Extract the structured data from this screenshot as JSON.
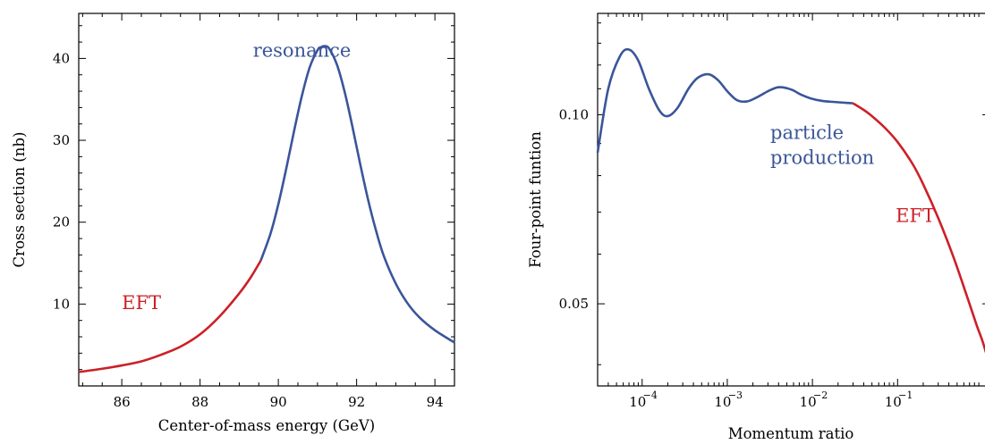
{
  "colors": {
    "blue": "#3a559a",
    "red": "#cc2027"
  },
  "chart_data": [
    {
      "type": "line",
      "title": "",
      "xlabel": "Center-of-mass energy (GeV)",
      "ylabel": "Cross section (nb)",
      "xlim": [
        84.9,
        94.5
      ],
      "ylim": [
        0,
        45.5
      ],
      "xticks": [
        86,
        88,
        90,
        92,
        94
      ],
      "xtick_labels": [
        "86",
        "88",
        "90",
        "92",
        "94"
      ],
      "yticks": [
        10,
        20,
        30,
        40
      ],
      "ytick_labels": [
        "10",
        "20",
        "30",
        "40"
      ],
      "grid": false,
      "series": [
        {
          "label_text": "EFT",
          "color": "#cc2027",
          "x": [
            84.9,
            85.5,
            86.0,
            86.5,
            87.0,
            87.5,
            88.0,
            88.5,
            89.0,
            89.3,
            89.55
          ],
          "y": [
            1.7,
            2.1,
            2.5,
            3.0,
            3.8,
            4.8,
            6.3,
            8.5,
            11.3,
            13.3,
            15.3
          ]
        },
        {
          "label_text": "resonance",
          "color": "#3a559a",
          "x": [
            89.55,
            89.8,
            90.0,
            90.2,
            90.4,
            90.6,
            90.8,
            91.0,
            91.1,
            91.19,
            91.3,
            91.5,
            91.7,
            91.9,
            92.1,
            92.3,
            92.5,
            92.7,
            93.0,
            93.3,
            93.6,
            94.0,
            94.5
          ],
          "y": [
            15.3,
            18.6,
            22.2,
            26.5,
            31.1,
            35.4,
            38.9,
            41.0,
            41.4,
            41.5,
            41.2,
            39.2,
            35.8,
            31.5,
            26.9,
            22.6,
            18.9,
            15.8,
            12.5,
            10.1,
            8.4,
            6.8,
            5.3
          ]
        }
      ],
      "annotations": [
        {
          "text": "resonance",
          "color": "#3a559a",
          "x": 89.35,
          "y": 40.2
        },
        {
          "text": "EFT",
          "color": "#cc2027",
          "x": 86.0,
          "y": 9.4
        }
      ]
    },
    {
      "type": "line",
      "title": "",
      "xscale": "log",
      "yscale": "log",
      "xlabel": "Momentum ratio",
      "ylabel": "Four-point funtion",
      "xlim": [
        3e-05,
        1.2
      ],
      "ylim": [
        0.037,
        0.145
      ],
      "xticks": [
        0.0001,
        0.001,
        0.01,
        0.1
      ],
      "xtick_labels": [
        "10",
        "10",
        "10",
        "10"
      ],
      "xtick_exponents": [
        "−4",
        "−3",
        "−2",
        "−1"
      ],
      "yticks": [
        0.05,
        0.1
      ],
      "ytick_labels": [
        "0.05",
        "0.10"
      ],
      "grid": false,
      "series": [
        {
          "label_text": "particle production",
          "color": "#3a559a",
          "x": [
            3e-05,
            4e-05,
            5.5e-05,
            7e-05,
            9e-05,
            0.00012,
            0.00016,
            0.0002,
            0.00026,
            0.00035,
            0.00045,
            0.0006,
            0.00078,
            0.001,
            0.0013,
            0.0017,
            0.0022,
            0.003,
            0.0038,
            0.0046,
            0.0058,
            0.0075,
            0.0095,
            0.013,
            0.018,
            0.024,
            0.03
          ],
          "y": [
            0.087,
            0.11,
            0.124,
            0.127,
            0.122,
            0.11,
            0.1015,
            0.0995,
            0.1025,
            0.11,
            0.1145,
            0.116,
            0.1135,
            0.109,
            0.1055,
            0.105,
            0.1065,
            0.109,
            0.1105,
            0.1105,
            0.1095,
            0.1075,
            0.1062,
            0.1052,
            0.1048,
            0.1045,
            0.1043
          ]
        },
        {
          "label_text": "EFT",
          "color": "#cc2027",
          "x": [
            0.03,
            0.04,
            0.05,
            0.07,
            0.1,
            0.15,
            0.2,
            0.3,
            0.45,
            0.65,
            0.85,
            1.0,
            1.2
          ],
          "y": [
            0.1043,
            0.1018,
            0.0995,
            0.0955,
            0.0905,
            0.0835,
            0.0775,
            0.0685,
            0.0595,
            0.0515,
            0.0462,
            0.0435,
            0.04
          ]
        }
      ],
      "annotations": [
        {
          "text": "particle",
          "color": "#3a559a",
          "x": 0.0032,
          "y": 0.0915
        },
        {
          "text": "production",
          "color": "#3a559a",
          "x": 0.0032,
          "y": 0.0835
        },
        {
          "text": "EFT",
          "color": "#cc2027",
          "x": 0.095,
          "y": 0.0675
        }
      ]
    }
  ]
}
